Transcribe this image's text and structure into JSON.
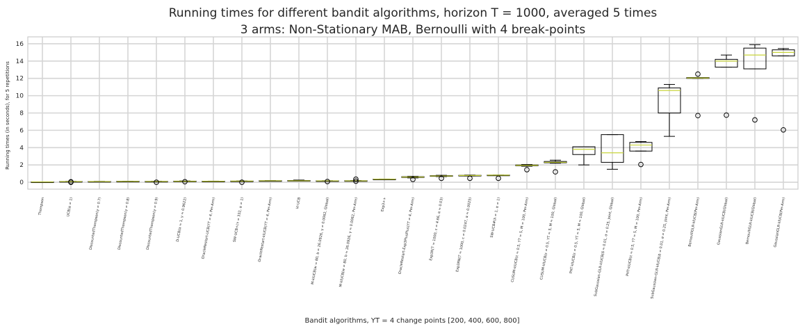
{
  "chart_data": {
    "type": "box",
    "title_line1": "Running times for different bandit algorithms, horizon T = 1000, averaged 5 times",
    "title_line2": "3 arms: Non-Stationary MAB, Bernoulli with 4 break-points",
    "xlabel": "Bandit algorithms, ΥT = 4 change points [200, 400, 600, 800]",
    "ylabel": "Running times (in seconds), for 5 repetitions",
    "ylim": [
      -0.8,
      16.8
    ],
    "yticks": [
      "0",
      "2",
      "4",
      "6",
      "8",
      "10",
      "12",
      "14",
      "16"
    ],
    "grid": true,
    "categories": [
      "Thompson",
      "UCB(α = 1)",
      "DiscountedThompson(γ = 0.7)",
      "DiscountedThompson(γ = 0.8)",
      "DiscountedThompson(γ = 0.9)",
      "D-UCB(α = 1, γ = 0.9622)",
      "OracleRestart-UCB(ΥT = 4, Per-Arm)",
      "SW-UCB+(τ = 332, α = 1)",
      "OracleRestart-klUCB(ΥT = 4, Per-Arm)",
      "kl-UCB",
      "M-klUCB(w = 80, b = 26.0926, γ = 0.0062, Global)",
      "M-klUCB(w = 80, b = 26.0926, γ = 0.0062, Per-Arm)",
      "Exp3++",
      "OracleRestart-Exp3PlusPlus(ΥT = 4, Per-Arm)",
      "Exp3R(T = 1000, c = 4.66, α = 0.03)",
      "Exp3RN(T = 1000, c = 0.0247, α = 0.0025)",
      "SW-UCB#(λ = 1, α = 1)",
      "CUSUM-klUCB(ε = 0.5, ΥT = 5, M = 100, Per-Arm)",
      "CUSUM-klUCB(ε = 0.5, ΥT = 5, M = 100, Global)",
      "PHT-klUCB(ε = 0.5, ΥT = 5, M = 100, Global)",
      "SubGaussian-GLR-klUCB(δ = 0.01, σ = 0.25, joint, Global)",
      "PHT-klUCB(ε = 0.5, ΥT = 5, M = 100, Per-Arm)",
      "SubGaussian-GLR-klUCB(δ = 0.01, σ = 0.25, joint, Per-Arm)",
      "BernoulliGLR-klUCB(Per-Arm)",
      "GaussianGLR-klUCB(Global)",
      "BernoulliGLR-klUCB(Global)",
      "GaussianGLR-klUCB(Per-Arm)"
    ],
    "boxes": [
      {
        "whislo": 0.02,
        "q1": 0.03,
        "med": 0.03,
        "q3": 0.04,
        "whishi": 0.04,
        "fliers": []
      },
      {
        "whislo": 0.07,
        "q1": 0.08,
        "med": 0.08,
        "q3": 0.09,
        "whishi": 0.1,
        "fliers": [
          0.0,
          0.05
        ]
      },
      {
        "whislo": 0.07,
        "q1": 0.08,
        "med": 0.08,
        "q3": 0.09,
        "whishi": 0.1,
        "fliers": []
      },
      {
        "whislo": 0.08,
        "q1": 0.09,
        "med": 0.1,
        "q3": 0.11,
        "whishi": 0.12,
        "fliers": []
      },
      {
        "whislo": 0.07,
        "q1": 0.08,
        "med": 0.09,
        "q3": 0.1,
        "whishi": 0.11,
        "fliers": [
          0.0
        ]
      },
      {
        "whislo": 0.08,
        "q1": 0.1,
        "med": 0.11,
        "q3": 0.13,
        "whishi": 0.15,
        "fliers": [
          0.06
        ]
      },
      {
        "whislo": 0.09,
        "q1": 0.1,
        "med": 0.11,
        "q3": 0.12,
        "whishi": 0.13,
        "fliers": []
      },
      {
        "whislo": 0.11,
        "q1": 0.12,
        "med": 0.13,
        "q3": 0.14,
        "whishi": 0.15,
        "fliers": [
          0.0
        ]
      },
      {
        "whislo": 0.15,
        "q1": 0.16,
        "med": 0.17,
        "q3": 0.18,
        "whishi": 0.19,
        "fliers": []
      },
      {
        "whislo": 0.13,
        "q1": 0.15,
        "med": 0.17,
        "q3": 0.2,
        "whishi": 0.25,
        "fliers": []
      },
      {
        "whislo": 0.14,
        "q1": 0.15,
        "med": 0.16,
        "q3": 0.17,
        "whishi": 0.18,
        "fliers": [
          0.08
        ]
      },
      {
        "whislo": 0.14,
        "q1": 0.15,
        "med": 0.16,
        "q3": 0.18,
        "whishi": 0.19,
        "fliers": [
          0.12,
          0.35
        ]
      },
      {
        "whislo": 0.33,
        "q1": 0.34,
        "med": 0.35,
        "q3": 0.36,
        "whishi": 0.37,
        "fliers": []
      },
      {
        "whislo": 0.5,
        "q1": 0.55,
        "med": 0.6,
        "q3": 0.64,
        "whishi": 0.68,
        "fliers": [
          0.32
        ]
      },
      {
        "whislo": 0.65,
        "q1": 0.68,
        "med": 0.72,
        "q3": 0.76,
        "whishi": 0.8,
        "fliers": [
          0.45
        ]
      },
      {
        "whislo": 0.72,
        "q1": 0.75,
        "med": 0.78,
        "q3": 0.8,
        "whishi": 0.83,
        "fliers": [
          0.45
        ]
      },
      {
        "whislo": 0.8,
        "q1": 0.81,
        "med": 0.82,
        "q3": 0.83,
        "whishi": 0.84,
        "fliers": [
          0.45
        ]
      },
      {
        "whislo": 1.85,
        "q1": 1.9,
        "med": 1.95,
        "q3": 2.0,
        "whishi": 2.05,
        "fliers": [
          1.45
        ]
      },
      {
        "whislo": 2.2,
        "q1": 2.25,
        "med": 2.3,
        "q3": 2.4,
        "whishi": 2.55,
        "fliers": [
          1.2
        ]
      },
      {
        "whislo": 2.0,
        "q1": 3.2,
        "med": 3.8,
        "q3": 4.1,
        "whishi": 4.1,
        "fliers": []
      },
      {
        "whislo": 1.5,
        "q1": 2.3,
        "med": 3.4,
        "q3": 5.5,
        "whishi": 5.5,
        "fliers": []
      },
      {
        "whislo": 3.6,
        "q1": 3.6,
        "med": 4.3,
        "q3": 4.6,
        "whishi": 4.7,
        "fliers": [
          2.05
        ]
      },
      {
        "whislo": 5.3,
        "q1": 8.0,
        "med": 10.6,
        "q3": 10.9,
        "whishi": 11.3,
        "fliers": []
      },
      {
        "whislo": 12.0,
        "q1": 12.0,
        "med": 12.05,
        "q3": 12.1,
        "whishi": 12.1,
        "fliers": [
          7.7,
          12.5
        ]
      },
      {
        "whislo": 13.3,
        "q1": 13.3,
        "med": 14.0,
        "q3": 14.2,
        "whishi": 14.7,
        "fliers": [
          7.75
        ]
      },
      {
        "whislo": 13.1,
        "q1": 13.1,
        "med": 14.7,
        "q3": 15.5,
        "whishi": 15.9,
        "fliers": [
          7.2
        ]
      },
      {
        "whislo": 14.6,
        "q1": 14.6,
        "med": 15.0,
        "q3": 15.3,
        "whishi": 15.45,
        "fliers": [
          6.05
        ]
      }
    ],
    "colors": {
      "box": "#000000",
      "median": "#c8d43a",
      "grid": "#d5d5d5",
      "flier_edge": "#000000"
    }
  }
}
